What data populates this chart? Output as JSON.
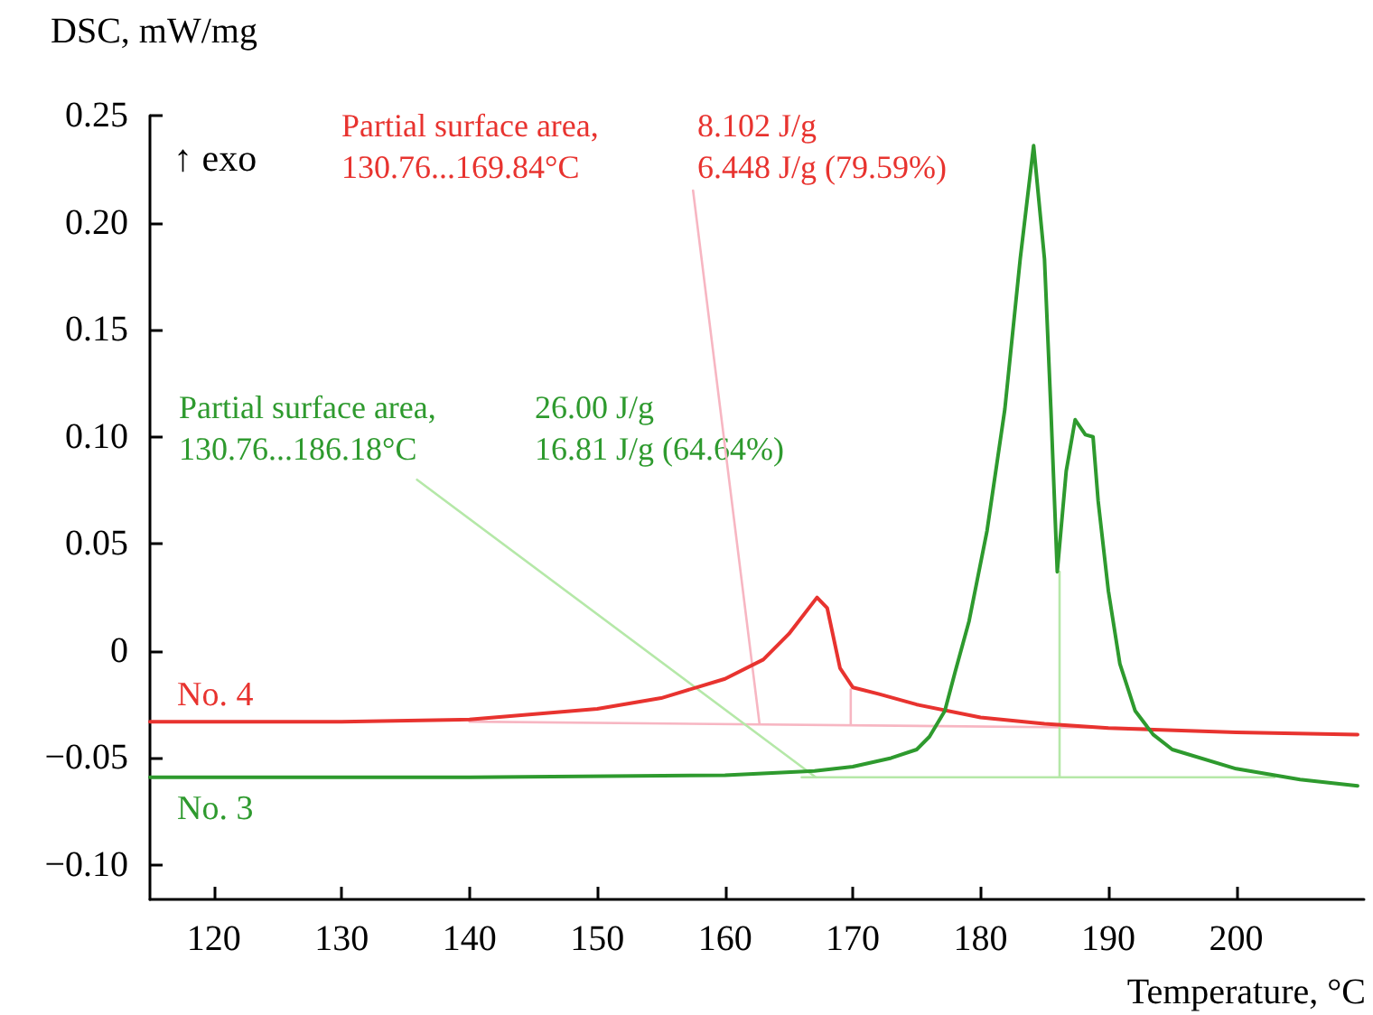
{
  "chart_data": {
    "type": "line",
    "xlabel": "Temperature, °C",
    "ylabel": "DSC, mW/mg",
    "xlim": [
      115,
      210
    ],
    "xticks": [
      120,
      130,
      140,
      150,
      160,
      170,
      180,
      190,
      200
    ],
    "ylim": [
      -0.116,
      0.25
    ],
    "yticks": [
      {
        "value": -0.1,
        "label": "−0.10"
      },
      {
        "value": -0.05,
        "label": "−0.05"
      },
      0,
      0.05,
      {
        "value": 0.1,
        "label": "0.10"
      },
      0.15,
      {
        "value": 0.2,
        "label": "0.20"
      },
      0.25
    ],
    "grid": false,
    "legend": false,
    "marker": "none",
    "line_style": "solid",
    "annotations": [
      "↑ exo",
      "Partial surface area,\n130.76...169.84°C",
      "8.102 J/g\n6.448 J/g (79.59%)",
      "Partial surface area,\n130.76...186.18°C",
      "26.00 J/g\n16.81 J/g (64.64%)"
    ],
    "series": [
      {
        "name": "No. 4",
        "color": "#e8332f",
        "x": [
          115,
          130,
          140,
          150,
          155,
          160,
          163,
          165,
          167.2,
          168,
          169,
          170,
          172,
          175,
          180,
          185,
          190,
          200,
          209.5
        ],
        "values": [
          -0.033,
          -0.033,
          -0.032,
          -0.027,
          -0.022,
          -0.013,
          -0.004,
          0.008,
          0.025,
          0.02,
          -0.008,
          -0.017,
          -0.02,
          -0.025,
          -0.031,
          -0.034,
          -0.036,
          -0.038,
          -0.039
        ]
      },
      {
        "name": "No. 3",
        "color": "#2e9a2e",
        "x": [
          115,
          140,
          160,
          167,
          170,
          173,
          175,
          176,
          177.2,
          178,
          179.1,
          180.5,
          181.9,
          183.1,
          184.15,
          185,
          185.5,
          186,
          186.7,
          187.4,
          188.2,
          188.8,
          189.2,
          190,
          190.9,
          192.1,
          193.5,
          195,
          200,
          205,
          209.5
        ],
        "values": [
          -0.059,
          -0.059,
          -0.058,
          -0.056,
          -0.054,
          -0.05,
          -0.046,
          -0.04,
          -0.028,
          -0.01,
          0.014,
          0.056,
          0.113,
          0.183,
          0.236,
          0.183,
          0.113,
          0.037,
          0.084,
          0.108,
          0.101,
          0.1,
          0.07,
          0.028,
          -0.006,
          -0.028,
          -0.039,
          -0.046,
          -0.055,
          -0.06,
          -0.063
        ]
      },
      {
        "color": "#f7b6c2",
        "x": [
          140,
          193
        ],
        "values": [
          -0.033,
          -0.036
        ]
      },
      {
        "color": "#f7b6c2",
        "x": [
          169.84,
          169.84
        ],
        "values": [
          -0.034,
          -0.018
        ]
      },
      {
        "color": "#f7b6c2",
        "x": [
          157.5,
          162.7
        ],
        "values": [
          0.215,
          -0.034
        ]
      },
      {
        "color": "#b5e8a8",
        "x": [
          166,
          203
        ],
        "values": [
          -0.059,
          -0.059
        ]
      },
      {
        "color": "#b5e8a8",
        "x": [
          186.18,
          186.18
        ],
        "values": [
          -0.059,
          0.037
        ]
      },
      {
        "color": "#b5e8a8",
        "x": [
          135.9,
          167.1
        ],
        "values": [
          0.08,
          -0.059
        ]
      }
    ]
  }
}
